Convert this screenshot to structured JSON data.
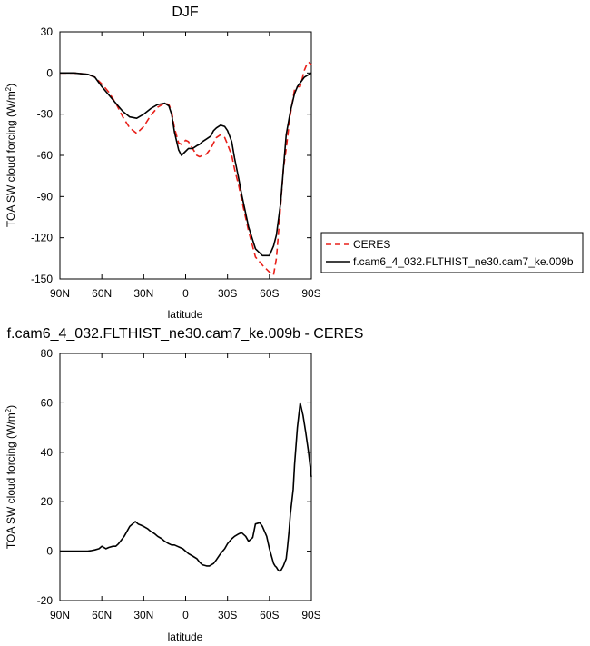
{
  "chart_data": [
    {
      "type": "line",
      "title": "DJF",
      "xlabel": "latitude",
      "ylabel": "TOA SW cloud forcing (W/m",
      "ylabel_sup": "2",
      "ylabel_close": ")",
      "xlim": [
        -90,
        90
      ],
      "ylim": [
        -150,
        30
      ],
      "x_ticks": [
        -90,
        -60,
        -30,
        0,
        30,
        60,
        90
      ],
      "x_tick_labels": [
        "90N",
        "60N",
        "30N",
        "0",
        "30S",
        "60S",
        "90S"
      ],
      "y_ticks": [
        30,
        0,
        -30,
        -60,
        -90,
        -120,
        -150
      ],
      "y_tick_labels": [
        "30",
        "0",
        "-30",
        "-60",
        "-90",
        "-120",
        "-150"
      ],
      "legend_position": "right",
      "series": [
        {
          "name": "CERES",
          "color": "#e8201a",
          "dash": "dashed",
          "x": [
            -90,
            -80,
            -75,
            -70,
            -65,
            -60,
            -55,
            -50,
            -45,
            -40,
            -35,
            -30,
            -25,
            -20,
            -15,
            -12,
            -10,
            -8,
            -5,
            -3,
            -1,
            0,
            2,
            5,
            8,
            10,
            12,
            15,
            18,
            20,
            22,
            25,
            28,
            30,
            33,
            35,
            38,
            40,
            45,
            50,
            55,
            60,
            63,
            65,
            67,
            70,
            72,
            75,
            78,
            80,
            82,
            85,
            87,
            88,
            90
          ],
          "y": [
            0,
            0,
            -0.5,
            -1,
            -3,
            -8,
            -14,
            -22,
            -32,
            -40,
            -44,
            -39,
            -31,
            -25,
            -22,
            -23,
            -28,
            -40,
            -51,
            -52,
            -50,
            -49,
            -50,
            -55,
            -60,
            -61,
            -60,
            -59,
            -55,
            -51,
            -47,
            -45,
            -47,
            -52,
            -60,
            -70,
            -82,
            -92,
            -115,
            -134,
            -140,
            -145,
            -147,
            -135,
            -110,
            -70,
            -55,
            -30,
            -12,
            -10,
            -10,
            2,
            7,
            8,
            6
          ]
        },
        {
          "name": "f.cam6_4_032.FLTHIST_ne30.cam7_ke.009b",
          "color": "#000000",
          "dash": "solid",
          "x": [
            -90,
            -80,
            -75,
            -70,
            -65,
            -60,
            -55,
            -50,
            -45,
            -40,
            -35,
            -30,
            -25,
            -20,
            -15,
            -12,
            -10,
            -8,
            -5,
            -3,
            0,
            2,
            5,
            8,
            10,
            12,
            15,
            18,
            20,
            22,
            25,
            28,
            30,
            33,
            35,
            38,
            40,
            45,
            50,
            55,
            60,
            63,
            65,
            68,
            70,
            72,
            75,
            78,
            80,
            85,
            90
          ],
          "y": [
            0,
            0,
            -0.5,
            -1,
            -3,
            -10,
            -16,
            -22,
            -28,
            -32,
            -33,
            -30,
            -26,
            -23,
            -22,
            -24,
            -30,
            -43,
            -56,
            -60,
            -57,
            -55,
            -55,
            -53,
            -52,
            -50,
            -48,
            -46,
            -42,
            -40,
            -38,
            -39,
            -42,
            -50,
            -62,
            -77,
            -88,
            -112,
            -128,
            -133,
            -133,
            -126,
            -118,
            -95,
            -70,
            -45,
            -28,
            -15,
            -10,
            -3,
            0
          ]
        }
      ]
    },
    {
      "type": "line",
      "title": "f.cam6_4_032.FLTHIST_ne30.cam7_ke.009b - CERES",
      "xlabel": "latitude",
      "ylabel": "TOA SW cloud forcing (W/m",
      "ylabel_sup": "2",
      "ylabel_close": ")",
      "xlim": [
        -90,
        90
      ],
      "ylim": [
        -20,
        80
      ],
      "x_ticks": [
        -90,
        -60,
        -30,
        0,
        30,
        60,
        90
      ],
      "x_tick_labels": [
        "90N",
        "60N",
        "30N",
        "0",
        "30S",
        "60S",
        "90S"
      ],
      "y_ticks": [
        80,
        60,
        40,
        20,
        0,
        -20
      ],
      "y_tick_labels": [
        "80",
        "60",
        "40",
        "20",
        "0",
        "-20"
      ],
      "series": [
        {
          "color": "#000000",
          "dash": "solid",
          "x": [
            -90,
            -80,
            -75,
            -70,
            -68,
            -65,
            -62,
            -60,
            -57,
            -55,
            -52,
            -50,
            -48,
            -46,
            -44,
            -42,
            -40,
            -38,
            -36,
            -34,
            -32,
            -30,
            -27,
            -25,
            -22,
            -20,
            -17,
            -15,
            -12,
            -10,
            -8,
            -6,
            -4,
            -2,
            0,
            2,
            5,
            8,
            10,
            12,
            15,
            17,
            20,
            22,
            25,
            28,
            30,
            33,
            35,
            38,
            40,
            43,
            45,
            48,
            50,
            53,
            55,
            58,
            60,
            62,
            63,
            64,
            65,
            66,
            67,
            68,
            70,
            72,
            73,
            74,
            75,
            77,
            78,
            80,
            82,
            84,
            86,
            88,
            90
          ],
          "y": [
            0,
            0,
            0,
            0,
            0.2,
            0.5,
            1,
            2,
            1,
            1.5,
            2,
            2,
            3,
            4.5,
            6,
            8,
            10,
            11,
            12,
            11,
            10.5,
            10,
            9,
            8,
            7,
            6,
            5,
            4,
            3,
            2.5,
            2.5,
            2,
            1.5,
            1,
            0,
            -1,
            -2,
            -3,
            -4.5,
            -5.5,
            -6,
            -6,
            -5,
            -3.5,
            -1,
            1,
            3,
            5,
            6,
            7,
            7.5,
            6,
            4,
            5.5,
            11,
            11.5,
            10,
            6,
            1,
            -3,
            -5,
            -6,
            -6.5,
            -7.5,
            -8,
            -8,
            -6,
            -3,
            2,
            8,
            15,
            25,
            35,
            50,
            60,
            55,
            48,
            40,
            30
          ]
        }
      ]
    }
  ]
}
